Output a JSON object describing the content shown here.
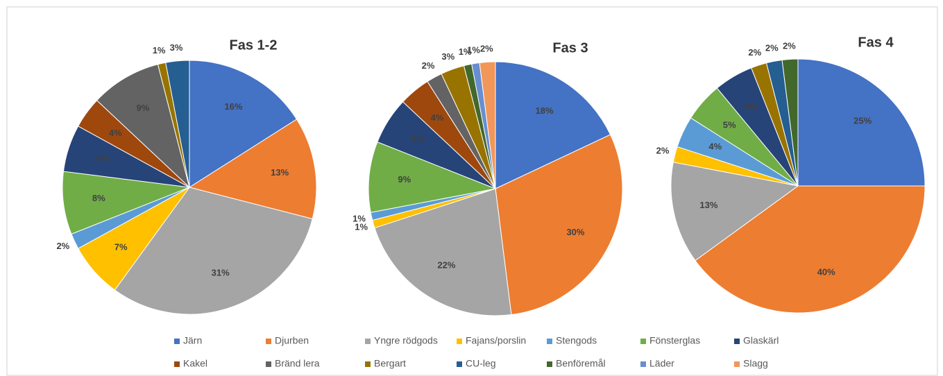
{
  "chart_data": {
    "type": "pie",
    "legend": "bottom",
    "categories": [
      "Järn",
      "Djurben",
      "Yngre rödgods",
      "Fajans/porslin",
      "Stengods",
      "Fönsterglas",
      "Glaskärl",
      "Kakel",
      "Bränd lera",
      "Bergart",
      "CU-leg",
      "Benföremål",
      "Läder",
      "Slagg"
    ],
    "colors": [
      "#4472c4",
      "#ed7d31",
      "#a5a5a5",
      "#ffc000",
      "#5b9bd5",
      "#70ad47",
      "#264478",
      "#9e480e",
      "#636363",
      "#997300",
      "#255e91",
      "#43682b",
      "#698ed0",
      "#f1975a"
    ],
    "pies": [
      {
        "title": "Fas 1-2",
        "values": [
          16,
          13,
          31,
          7,
          2,
          8,
          6,
          4,
          9,
          1,
          3,
          null,
          null,
          null
        ],
        "value_labels": [
          "16%",
          "13%",
          "31%",
          "7%",
          "2%",
          "8%",
          "6%",
          "4%",
          "9%",
          "1%",
          "3%",
          null,
          null,
          null
        ]
      },
      {
        "title": "Fas 3",
        "values": [
          18,
          30,
          22,
          1,
          1,
          9,
          6,
          4,
          2,
          3,
          null,
          1,
          1,
          2
        ],
        "value_labels": [
          "18%",
          "30%",
          "22%",
          "1%",
          "1%",
          "9%",
          "6%",
          "4%",
          "2%",
          "3%",
          null,
          "1%",
          "1%",
          "2%"
        ]
      },
      {
        "title": "Fas 4",
        "values": [
          25,
          40,
          13,
          2,
          4,
          5,
          5,
          null,
          null,
          2,
          2,
          2,
          null,
          null
        ],
        "value_labels": [
          "25%",
          "40%",
          "13%",
          "2%",
          "4%",
          "5%",
          "5%",
          null,
          null,
          "2%",
          "2%",
          "2%",
          null,
          null
        ]
      }
    ]
  }
}
